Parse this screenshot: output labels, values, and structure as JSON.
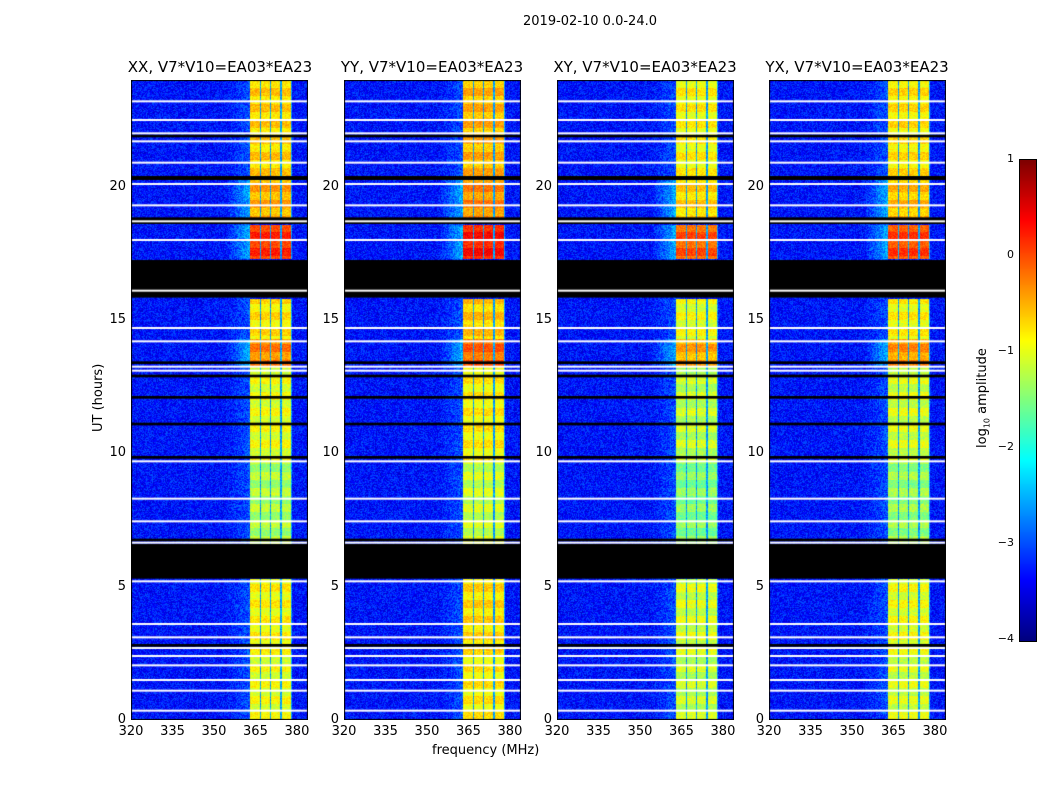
{
  "chart_data": {
    "type": "heatmap",
    "title": "2019-02-10 0.0-24.0",
    "panels": [
      {
        "title": "XX, V7*V10=EA03*EA23"
      },
      {
        "title": "YY, V7*V10=EA03*EA23"
      },
      {
        "title": "XY, V7*V10=EA03*EA23"
      },
      {
        "title": "YX, V7*V10=EA03*EA23"
      }
    ],
    "xlabel": "frequency (MHz)",
    "ylabel": "UT (hours)",
    "xlim": [
      320,
      384
    ],
    "ylim": [
      0,
      24
    ],
    "xticks": [
      "320",
      "335",
      "350",
      "365",
      "380"
    ],
    "xtick_values": [
      320,
      335,
      350,
      365,
      380
    ],
    "yticks": [
      "0",
      "5",
      "10",
      "15",
      "20"
    ],
    "ytick_values": [
      0,
      5,
      10,
      15,
      20
    ],
    "colorbar": {
      "label": "log10 amplitude",
      "label_main": "log",
      "label_sub": "10",
      "label_rest": " amplitude",
      "ticks": [
        "1",
        "0",
        "−1",
        "−2",
        "−3",
        "−4"
      ],
      "tick_values": [
        1,
        0,
        -1,
        -2,
        -3,
        -4
      ],
      "range": [
        -4,
        1
      ],
      "colormap": "jet"
    },
    "background_level": -3.3,
    "bright_band_mhz": [
      363,
      378
    ],
    "band_subchannels": 4,
    "band_levels": [
      {
        "from": 0,
        "to": 2.6,
        "level": -1.0
      },
      {
        "from": 2.6,
        "to": 5.3,
        "level": -0.9
      },
      {
        "from": 6.6,
        "to": 9.7,
        "level": -1.3
      },
      {
        "from": 9.7,
        "to": 13.3,
        "level": -1.0
      },
      {
        "from": 13.3,
        "to": 14.3,
        "level": -0.3
      },
      {
        "from": 14.3,
        "to": 15.8,
        "level": -0.8
      },
      {
        "from": 17.3,
        "to": 18.6,
        "level": 0.1
      },
      {
        "from": 18.8,
        "to": 20.3,
        "level": -0.5
      },
      {
        "from": 20.3,
        "to": 24,
        "level": -0.7
      }
    ],
    "flagged_black_hours": [
      [
        15.84,
        17.25
      ],
      [
        5.3,
        6.6
      ],
      [
        21.85,
        21.95
      ],
      [
        20.25,
        20.4
      ],
      [
        18.6,
        18.85
      ],
      [
        13.35,
        13.45
      ],
      [
        12.85,
        12.95
      ],
      [
        12.05,
        12.15
      ],
      [
        11.05,
        11.15
      ],
      [
        9.8,
        9.9
      ],
      [
        6.7,
        6.8
      ],
      [
        2.75,
        2.85
      ]
    ],
    "flagged_white_hours": [
      23.2,
      22.5,
      22.0,
      21.7,
      20.9,
      20.1,
      19.3,
      18.7,
      18.0,
      16.1,
      14.7,
      14.2,
      13.25,
      13.1,
      9.7,
      8.3,
      7.45,
      6.65,
      5.2,
      3.6,
      3.1,
      2.7,
      2.4,
      2.05,
      1.5,
      1.1,
      0.35
    ]
  }
}
